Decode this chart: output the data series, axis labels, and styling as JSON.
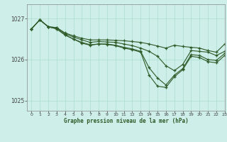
{
  "title": "Graphe pression niveau de la mer (hPa)",
  "bg_color": "#cdeee9",
  "grid_color": "#aaddcc",
  "line_color": "#2d5a27",
  "marker_color": "#2d5a27",
  "xlim": [
    -0.5,
    23
  ],
  "ylim": [
    1024.75,
    1027.35
  ],
  "yticks": [
    1025,
    1026,
    1027
  ],
  "xticks": [
    0,
    1,
    2,
    3,
    4,
    5,
    6,
    7,
    8,
    9,
    10,
    11,
    12,
    13,
    14,
    15,
    16,
    17,
    18,
    19,
    20,
    21,
    22,
    23
  ],
  "series": [
    [
      1026.75,
      1026.97,
      1026.8,
      1026.78,
      1026.65,
      1026.58,
      1026.52,
      1026.48,
      1026.48,
      1026.48,
      1026.47,
      1026.46,
      1026.44,
      1026.42,
      1026.38,
      1026.33,
      1026.28,
      1026.35,
      1026.32,
      1026.3,
      1026.28,
      1026.22,
      1026.18,
      1026.38
    ],
    [
      1026.75,
      1026.97,
      1026.8,
      1026.78,
      1026.63,
      1026.55,
      1026.48,
      1026.42,
      1026.44,
      1026.43,
      1026.42,
      1026.38,
      1026.34,
      1026.28,
      1026.2,
      1026.08,
      1025.85,
      1025.73,
      1025.88,
      1026.22,
      1026.2,
      1026.18,
      1026.1,
      1026.2
    ],
    [
      1026.75,
      1026.97,
      1026.8,
      1026.75,
      1026.6,
      1026.5,
      1026.42,
      1026.36,
      1026.38,
      1026.38,
      1026.35,
      1026.3,
      1026.26,
      1026.2,
      1025.8,
      1025.55,
      1025.38,
      1025.62,
      1025.78,
      1026.12,
      1026.1,
      1026.0,
      1025.98,
      1026.15
    ],
    [
      1026.75,
      1026.97,
      1026.8,
      1026.75,
      1026.6,
      1026.5,
      1026.4,
      1026.35,
      1026.38,
      1026.37,
      1026.34,
      1026.28,
      1026.24,
      1026.18,
      1025.62,
      1025.35,
      1025.32,
      1025.58,
      1025.75,
      1026.08,
      1026.05,
      1025.95,
      1025.92,
      1026.1
    ]
  ]
}
